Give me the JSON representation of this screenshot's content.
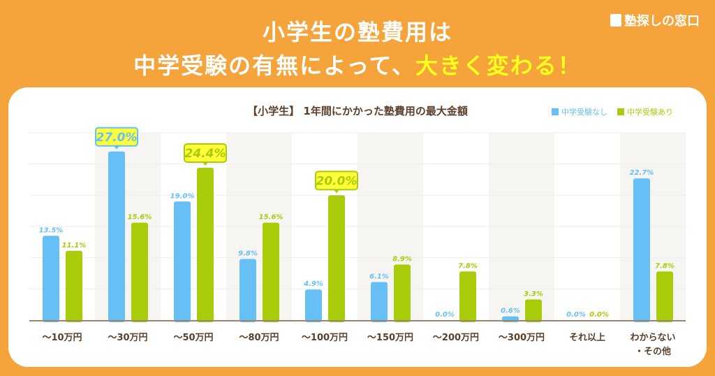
{
  "header": {
    "line1": "小学生の塾費用は",
    "line2_a": "中学受験の有無によって、",
    "line2_b": "大きく変わる！"
  },
  "logo": {
    "text": "塾探しの窓口"
  },
  "colors": {
    "blue": "#66bff5",
    "green": "#a9cc0a",
    "axis": "#9a8670",
    "label": "#5a3f2a",
    "band": "#f6f5f1",
    "callout_bg": "#ffff3a"
  },
  "chart_data": {
    "type": "bar",
    "title": "【小学生】 1年間にかかった塾費用の最大金額",
    "categories": [
      "〜10万円",
      "〜30万円",
      "〜50万円",
      "〜80万円",
      "〜100万円",
      "〜150万円",
      "〜200万円",
      "〜300万円",
      "それ以上",
      "わからない\n・その他"
    ],
    "series": [
      {
        "name": "中学受験なし",
        "values": [
          13.5,
          27.0,
          19.0,
          9.8,
          4.9,
          6.1,
          0.0,
          0.6,
          0.0,
          22.7
        ]
      },
      {
        "name": "中学受験あり",
        "values": [
          11.1,
          15.6,
          24.4,
          15.6,
          20.0,
          8.9,
          7.8,
          3.3,
          0.0,
          7.8
        ]
      }
    ],
    "highlights": [
      {
        "series": 0,
        "index": 1
      },
      {
        "series": 1,
        "index": 2
      },
      {
        "series": 1,
        "index": 4
      }
    ],
    "ylim": [
      0,
      30
    ],
    "grid": true,
    "legend": "top-right",
    "unit": "%"
  }
}
